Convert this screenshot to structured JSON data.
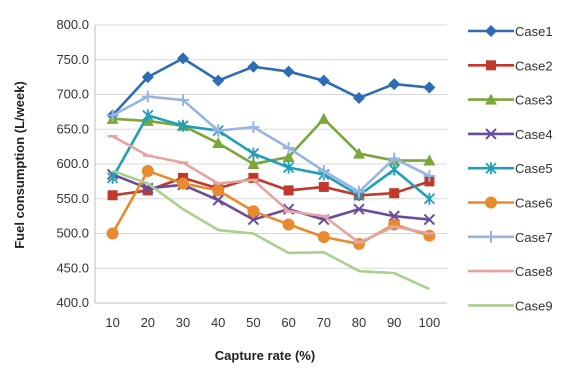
{
  "chart_data": {
    "type": "line",
    "title": "",
    "xlabel": "Capture rate (%)",
    "ylabel": "Fuel consumption (L/week)",
    "x": [
      10,
      20,
      30,
      40,
      50,
      60,
      70,
      80,
      90,
      100
    ],
    "x_tick_labels": [
      "10",
      "20",
      "30",
      "40",
      "50",
      "60",
      "70",
      "80",
      "90",
      "100"
    ],
    "ylim": [
      400,
      800
    ],
    "y_ticks": [
      400,
      450,
      500,
      550,
      600,
      650,
      700,
      750,
      800
    ],
    "y_tick_labels": [
      "400.0",
      "450.0",
      "500.0",
      "550.0",
      "600.0",
      "650.0",
      "700.0",
      "750.0",
      "800.0"
    ],
    "grid": "horizontal",
    "legend_position": "right",
    "series": [
      {
        "name": "Case1",
        "color": "#2e6db4",
        "marker": "diamond",
        "values": [
          670,
          725,
          752,
          720,
          740,
          733,
          720,
          695,
          715,
          710
        ]
      },
      {
        "name": "Case2",
        "color": "#c0392b",
        "marker": "square",
        "values": [
          555,
          562,
          580,
          565,
          580,
          562,
          567,
          555,
          558,
          575
        ]
      },
      {
        "name": "Case3",
        "color": "#7aa63a",
        "marker": "triangle",
        "values": [
          665,
          662,
          655,
          630,
          600,
          610,
          665,
          615,
          605,
          605
        ]
      },
      {
        "name": "Case4",
        "color": "#6a4c9c",
        "marker": "x",
        "values": [
          585,
          565,
          570,
          548,
          520,
          535,
          520,
          535,
          525,
          520
        ]
      },
      {
        "name": "Case5",
        "color": "#1fa0b8",
        "marker": "asterisk",
        "values": [
          580,
          670,
          655,
          648,
          615,
          595,
          585,
          555,
          592,
          550
        ]
      },
      {
        "name": "Case6",
        "color": "#e88a2e",
        "marker": "circle",
        "values": [
          500,
          590,
          572,
          562,
          532,
          513,
          495,
          485,
          513,
          497
        ]
      },
      {
        "name": "Case7",
        "color": "#98b4e0",
        "marker": "plus",
        "values": [
          670,
          697,
          692,
          648,
          653,
          623,
          590,
          560,
          608,
          583
        ]
      },
      {
        "name": "Case8",
        "color": "#e3a5a3",
        "marker": "dash",
        "values": [
          640,
          612,
          602,
          572,
          577,
          532,
          525,
          487,
          510,
          500
        ]
      },
      {
        "name": "Case9",
        "color": "#a9d18e",
        "marker": "none",
        "values": [
          590,
          572,
          535,
          505,
          500,
          472,
          473,
          446,
          443,
          420
        ]
      }
    ]
  }
}
